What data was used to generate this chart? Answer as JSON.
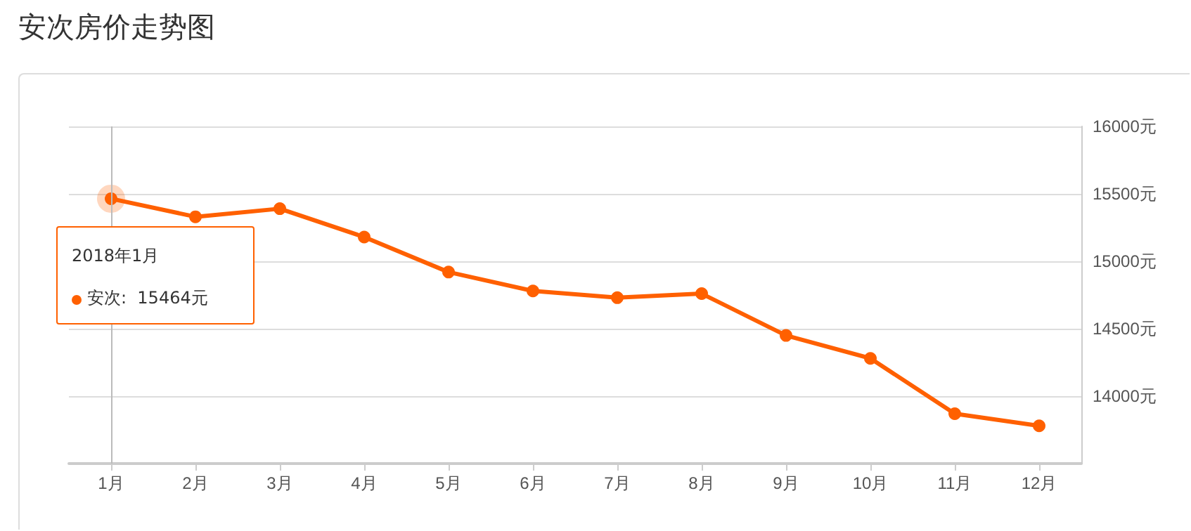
{
  "chart_data": {
    "type": "line",
    "title": "安次房价走势图",
    "categories": [
      "1月",
      "2月",
      "3月",
      "4月",
      "5月",
      "6月",
      "7月",
      "8月",
      "9月",
      "10月",
      "11月",
      "12月"
    ],
    "series": [
      {
        "color": "#ff6000",
        "values": [
          15464,
          15330,
          15390,
          15180,
          14920,
          14780,
          14730,
          14760,
          14450,
          14280,
          13870,
          13780
        ]
      }
    ],
    "ylim": [
      13500,
      16000
    ],
    "yticks": [
      {
        "value": 14000,
        "label": "14000元"
      },
      {
        "value": 14500,
        "label": "14500元"
      },
      {
        "value": 15000,
        "label": "15000元"
      },
      {
        "value": 15500,
        "label": "15500元"
      },
      {
        "value": 16000,
        "label": "16000元"
      }
    ],
    "annotations": [
      "2018年1月",
      "安次:  15464元"
    ],
    "ref_lines": [
      {
        "axis": "x",
        "value": "1月",
        "color": "#bbbbbb"
      }
    ],
    "grid": "y",
    "marker": "circle",
    "line_style": "solid"
  }
}
